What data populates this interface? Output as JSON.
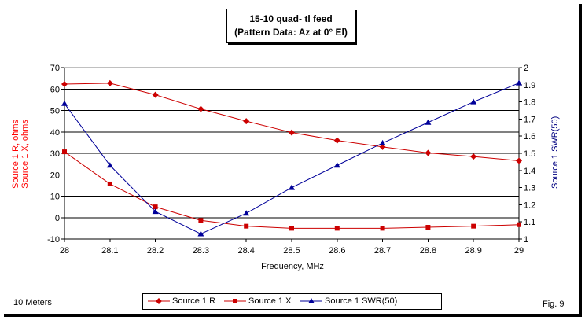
{
  "chart_data": {
    "type": "line",
    "title": "15-10 quad- tl feed",
    "subtitle": "(Pattern Data: Az at 0° El)",
    "xlabel": "Frequency, MHz",
    "ylabel_left_1": "Source 1 R, ohms",
    "ylabel_left_2": "Source 1 X, ohms",
    "ylabel_right": "Source 1 SWR(50)",
    "x": [
      28,
      28.1,
      28.2,
      28.3,
      28.4,
      28.5,
      28.6,
      28.7,
      28.8,
      28.9,
      29
    ],
    "x_ticks": [
      "28",
      "28.1",
      "28.2",
      "28.3",
      "28.4",
      "28.5",
      "28.6",
      "28.7",
      "28.8",
      "28.9",
      "29"
    ],
    "ylim_left": [
      -10,
      70
    ],
    "y_ticks_left": [
      "-10",
      "0",
      "10",
      "20",
      "30",
      "40",
      "50",
      "60",
      "70"
    ],
    "ylim_right": [
      1,
      2
    ],
    "y_ticks_right": [
      "1",
      "1.1",
      "1.2",
      "1.3",
      "1.4",
      "1.5",
      "1.6",
      "1.7",
      "1.8",
      "1.9",
      "2"
    ],
    "grid": "horizontal",
    "legend_position": "bottom",
    "series": [
      {
        "name": "Source 1 R",
        "axis": "left",
        "color": "#cc0000",
        "marker": "diamond",
        "values": [
          62.3,
          62.7,
          57.3,
          50.7,
          45,
          39.7,
          36,
          33,
          30.2,
          28.5,
          26.5
        ]
      },
      {
        "name": "Source 1 X",
        "axis": "left",
        "color": "#cc0000",
        "marker": "square",
        "values": [
          30.7,
          15.7,
          5,
          -1.3,
          -4,
          -5,
          -5,
          -5,
          -4.5,
          -4,
          -3.3
        ]
      },
      {
        "name": "Source 1 SWR(50)",
        "axis": "right",
        "color": "#000099",
        "marker": "triangle",
        "values": [
          1.79,
          1.43,
          1.16,
          1.03,
          1.15,
          1.3,
          1.43,
          1.56,
          1.68,
          1.8,
          1.91
        ]
      }
    ]
  },
  "notes": {
    "left": "10 Meters",
    "right": "Fig. 9"
  }
}
